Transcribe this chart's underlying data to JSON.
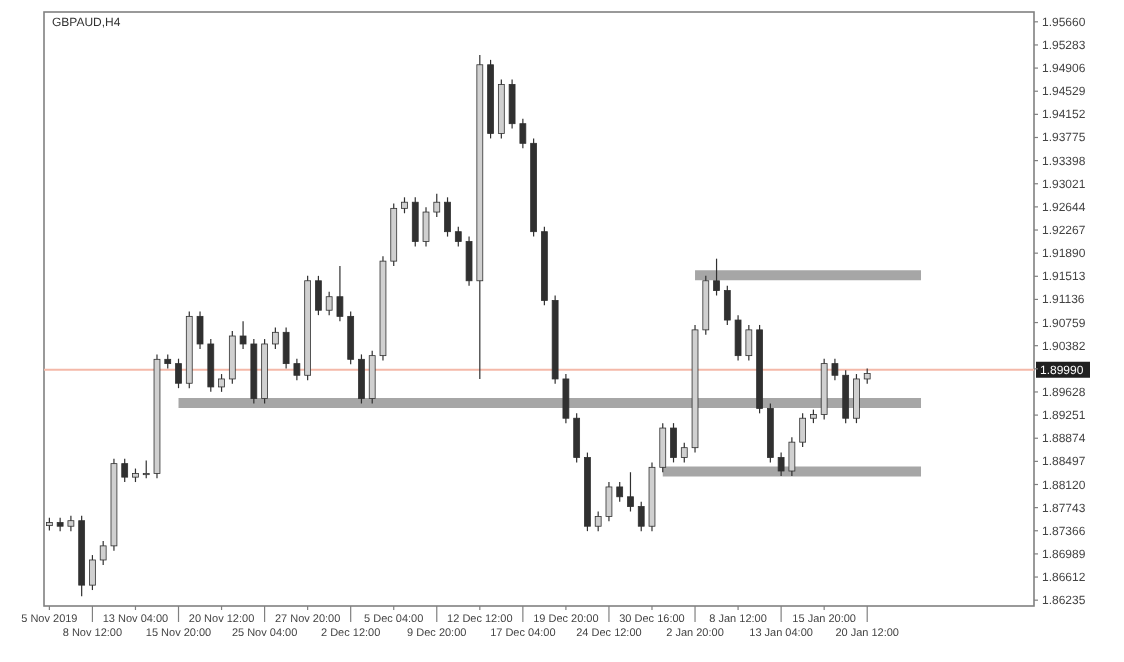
{
  "chart_data": {
    "type": "candlestick",
    "title": "GBPAUD,H4",
    "categories": [
      "5 Nov 2019",
      null,
      null,
      null,
      "8 Nov 12:00",
      null,
      null,
      null,
      "13 Nov 04:00",
      null,
      null,
      null,
      "15 Nov 20:00",
      null,
      null,
      null,
      "20 Nov 12:00",
      null,
      null,
      null,
      "25 Nov 04:00",
      null,
      null,
      null,
      "27 Nov 20:00",
      null,
      null,
      null,
      "2 Dec 12:00",
      null,
      null,
      null,
      "5 Dec 04:00",
      null,
      null,
      null,
      "9 Dec 20:00",
      null,
      null,
      null,
      "12 Dec 12:00",
      null,
      null,
      null,
      "17 Dec 04:00",
      null,
      null,
      null,
      "19 Dec 20:00",
      null,
      null,
      null,
      "24 Dec 12:00",
      null,
      null,
      null,
      "30 Dec 16:00",
      null,
      null,
      null,
      "2 Jan 20:00",
      null,
      null,
      null,
      "8 Jan 12:00",
      null,
      null,
      null,
      "13 Jan 04:00",
      null,
      null,
      null,
      "15 Jan 20:00",
      null,
      null,
      null,
      "20 Jan 12:00",
      null,
      null,
      null,
      null,
      null,
      null,
      null,
      null,
      null,
      null,
      null,
      null,
      null,
      null,
      null
    ],
    "ohlc": [
      [
        1.8745,
        1.8758,
        1.8737,
        1.875
      ],
      [
        1.875,
        1.8758,
        1.8736,
        1.8744
      ],
      [
        1.8744,
        1.8761,
        1.8736,
        1.8753
      ],
      [
        1.8753,
        1.8761,
        1.863,
        1.8648
      ],
      [
        1.8648,
        1.8697,
        1.864,
        1.8689
      ],
      [
        1.8689,
        1.872,
        1.8681,
        1.8712
      ],
      [
        1.8712,
        1.8854,
        1.8704,
        1.8846
      ],
      [
        1.8846,
        1.8854,
        1.8816,
        1.8824
      ],
      [
        1.8824,
        1.8838,
        1.8816,
        1.883
      ],
      [
        1.883,
        1.8851,
        1.8822,
        1.883
      ],
      [
        1.883,
        1.9024,
        1.8822,
        1.9016
      ],
      [
        1.9016,
        1.9024,
        1.9001,
        1.9009
      ],
      [
        1.9009,
        1.9017,
        1.8969,
        1.8977
      ],
      [
        1.8977,
        1.9094,
        1.8969,
        1.9086
      ],
      [
        1.9086,
        1.9094,
        1.9033,
        1.9041
      ],
      [
        1.9041,
        1.9049,
        1.8963,
        1.8971
      ],
      [
        1.8971,
        1.8992,
        1.8963,
        1.8984
      ],
      [
        1.8984,
        1.9062,
        1.8976,
        1.9054
      ],
      [
        1.9054,
        1.9078,
        1.9033,
        1.9041
      ],
      [
        1.9041,
        1.9049,
        1.8944,
        1.8952
      ],
      [
        1.8952,
        1.9049,
        1.8944,
        1.9041
      ],
      [
        1.9041,
        1.9068,
        1.9033,
        1.906
      ],
      [
        1.906,
        1.9068,
        1.9001,
        1.9009
      ],
      [
        1.9009,
        1.9017,
        1.8982,
        1.899
      ],
      [
        1.899,
        1.9152,
        1.8982,
        1.9144
      ],
      [
        1.9144,
        1.9152,
        1.9088,
        1.9096
      ],
      [
        1.9096,
        1.9126,
        1.9088,
        1.9118
      ],
      [
        1.9118,
        1.9168,
        1.9078,
        1.9086
      ],
      [
        1.9086,
        1.9094,
        1.9008,
        1.9016
      ],
      [
        1.9016,
        1.9024,
        1.8944,
        1.8952
      ],
      [
        1.8952,
        1.903,
        1.8944,
        1.9022
      ],
      [
        1.9022,
        1.9184,
        1.9014,
        1.9176
      ],
      [
        1.9176,
        1.927,
        1.9168,
        1.9262
      ],
      [
        1.9262,
        1.928,
        1.9254,
        1.9272
      ],
      [
        1.9272,
        1.928,
        1.92,
        1.9208
      ],
      [
        1.9208,
        1.9264,
        1.92,
        1.9256
      ],
      [
        1.9256,
        1.9286,
        1.9248,
        1.9272
      ],
      [
        1.9272,
        1.928,
        1.9216,
        1.9224
      ],
      [
        1.9224,
        1.9232,
        1.92,
        1.9208
      ],
      [
        1.9208,
        1.9216,
        1.9136,
        1.9144
      ],
      [
        1.9144,
        1.9512,
        1.8984,
        1.9496
      ],
      [
        1.9496,
        1.9504,
        1.9376,
        1.9384
      ],
      [
        1.9384,
        1.9472,
        1.9376,
        1.9464
      ],
      [
        1.9464,
        1.9472,
        1.9392,
        1.94
      ],
      [
        1.94,
        1.9408,
        1.936,
        1.9368
      ],
      [
        1.9368,
        1.9376,
        1.9216,
        1.9224
      ],
      [
        1.9224,
        1.9232,
        1.9104,
        1.9112
      ],
      [
        1.9112,
        1.912,
        1.8976,
        1.8984
      ],
      [
        1.8984,
        1.8992,
        1.8912,
        1.892
      ],
      [
        1.892,
        1.8928,
        1.8848,
        1.8856
      ],
      [
        1.8856,
        1.8864,
        1.8736,
        1.8744
      ],
      [
        1.8744,
        1.8768,
        1.8736,
        1.876
      ],
      [
        1.876,
        1.8816,
        1.8752,
        1.8808
      ],
      [
        1.8808,
        1.8816,
        1.8784,
        1.8792
      ],
      [
        1.8792,
        1.8832,
        1.8768,
        1.8776
      ],
      [
        1.8776,
        1.8784,
        1.8736,
        1.8744
      ],
      [
        1.8744,
        1.8848,
        1.8736,
        1.884
      ],
      [
        1.884,
        1.8912,
        1.8832,
        1.8904
      ],
      [
        1.8904,
        1.8912,
        1.8848,
        1.8856
      ],
      [
        1.8856,
        1.888,
        1.8848,
        1.8872
      ],
      [
        1.8872,
        1.9072,
        1.8864,
        1.9064
      ],
      [
        1.9064,
        1.9152,
        1.9056,
        1.9144
      ],
      [
        1.9144,
        1.918,
        1.912,
        1.9128
      ],
      [
        1.9128,
        1.9136,
        1.9072,
        1.908
      ],
      [
        1.908,
        1.9088,
        1.9014,
        1.9022
      ],
      [
        1.9022,
        1.9072,
        1.9014,
        1.9064
      ],
      [
        1.9064,
        1.9072,
        1.8928,
        1.8936
      ],
      [
        1.8936,
        1.8944,
        1.8848,
        1.8856
      ],
      [
        1.8856,
        1.8864,
        1.8826,
        1.8834
      ],
      [
        1.8834,
        1.8889,
        1.8826,
        1.8881
      ],
      [
        1.8881,
        1.8928,
        1.8873,
        1.892
      ],
      [
        1.892,
        1.8934,
        1.8912,
        1.8926
      ],
      [
        1.8926,
        1.9017,
        1.8918,
        1.9009
      ],
      [
        1.9009,
        1.9017,
        1.8982,
        1.899
      ],
      [
        1.899,
        1.8998,
        1.8912,
        1.892
      ],
      [
        1.892,
        1.8992,
        1.8912,
        1.8984
      ],
      [
        1.8984,
        1.9001,
        1.8976,
        1.8993
      ],
      null,
      null,
      null,
      null,
      null,
      null,
      null,
      null,
      null,
      null,
      null,
      null,
      null,
      null,
      null
    ],
    "series": [
      {
        "type": "line",
        "color": "#a6a6a6",
        "values": [
          null,
          null,
          null,
          null,
          null,
          null,
          null,
          null,
          null,
          null,
          null,
          null,
          1.8945,
          1.8945,
          1.8945,
          1.8945,
          1.8945,
          1.8945,
          1.8945,
          1.8945,
          1.8945,
          1.8945,
          1.8945,
          1.8945,
          1.8945,
          1.8945,
          1.8945,
          1.8945,
          1.8945,
          1.8945,
          1.8945,
          1.8945,
          1.8945,
          1.8945,
          1.8945,
          1.8945,
          1.8945,
          1.8945,
          1.8945,
          1.8945,
          1.8945,
          1.8945,
          1.8945,
          1.8945,
          1.8945,
          1.8945,
          1.8945,
          1.8945,
          1.8945,
          1.8945,
          1.8945,
          1.8945,
          1.8945,
          1.8945,
          1.8945,
          1.8945,
          1.8945,
          1.8945,
          1.8945,
          1.8945,
          1.8945,
          1.8945,
          1.8945,
          1.8945,
          1.8945,
          1.8945,
          1.8945,
          1.8945,
          1.8945,
          1.8945,
          1.8945,
          1.8945,
          1.8945,
          1.8945,
          1.8945,
          1.8945,
          1.8945,
          1.8945,
          1.8945,
          1.8945,
          1.8945,
          1.8945,
          null,
          null,
          null,
          null,
          null,
          null,
          null,
          null,
          null,
          null
        ]
      },
      {
        "type": "line",
        "color": "#a6a6a6",
        "values": [
          null,
          null,
          null,
          null,
          null,
          null,
          null,
          null,
          null,
          null,
          null,
          null,
          null,
          null,
          null,
          null,
          null,
          null,
          null,
          null,
          null,
          null,
          null,
          null,
          null,
          null,
          null,
          null,
          null,
          null,
          null,
          null,
          null,
          null,
          null,
          null,
          null,
          null,
          null,
          null,
          null,
          null,
          null,
          null,
          null,
          null,
          null,
          null,
          null,
          null,
          null,
          null,
          null,
          null,
          null,
          null,
          null,
          null,
          null,
          null,
          1.9153,
          1.9153,
          1.9153,
          1.9153,
          1.9153,
          1.9153,
          1.9153,
          1.9153,
          1.9153,
          1.9153,
          1.9153,
          1.9153,
          1.9153,
          1.9153,
          1.9153,
          1.9153,
          1.9153,
          1.9153,
          1.9153,
          1.9153,
          1.9153,
          1.9153,
          null,
          null,
          null,
          null,
          null,
          null,
          null,
          null,
          null,
          null
        ]
      },
      {
        "type": "line",
        "color": "#a6a6a6",
        "values": [
          null,
          null,
          null,
          null,
          null,
          null,
          null,
          null,
          null,
          null,
          null,
          null,
          null,
          null,
          null,
          null,
          null,
          null,
          null,
          null,
          null,
          null,
          null,
          null,
          null,
          null,
          null,
          null,
          null,
          null,
          null,
          null,
          null,
          null,
          null,
          null,
          null,
          null,
          null,
          null,
          null,
          null,
          null,
          null,
          null,
          null,
          null,
          null,
          null,
          null,
          null,
          null,
          null,
          null,
          null,
          null,
          null,
          1.8833,
          1.8833,
          1.8833,
          1.8833,
          1.8833,
          1.8833,
          1.8833,
          1.8833,
          1.8833,
          1.8833,
          1.8833,
          1.8833,
          1.8833,
          1.8833,
          1.8833,
          1.8833,
          1.8833,
          1.8833,
          1.8833,
          1.8833,
          1.8833,
          1.8833,
          1.8833,
          1.8833,
          1.8833,
          null,
          null,
          null,
          null,
          null,
          null,
          null,
          null,
          null,
          null
        ]
      }
    ],
    "ref_lines": [
      {
        "axis": "y",
        "value": 1.8999,
        "label": "1.89990",
        "color": "#f4b8a8"
      }
    ],
    "ylim": [
      1.8614,
      1.9582
    ],
    "yticks": [
      {
        "value": 1.9566,
        "label": "1.95660"
      },
      {
        "value": 1.95283,
        "label": "1.95283"
      },
      {
        "value": 1.94906,
        "label": "1.94906"
      },
      {
        "value": 1.94529,
        "label": "1.94529"
      },
      {
        "value": 1.94152,
        "label": "1.94152"
      },
      {
        "value": 1.93775,
        "label": "1.93775"
      },
      {
        "value": 1.93398,
        "label": "1.93398"
      },
      {
        "value": 1.93021,
        "label": "1.93021"
      },
      {
        "value": 1.92644,
        "label": "1.92644"
      },
      {
        "value": 1.92267,
        "label": "1.92267"
      },
      {
        "value": 1.9189,
        "label": "1.91890"
      },
      {
        "value": 1.91513,
        "label": "1.91513"
      },
      {
        "value": 1.91136,
        "label": "1.91136"
      },
      {
        "value": 1.90759,
        "label": "1.90759"
      },
      {
        "value": 1.90382,
        "label": "1.90382"
      },
      {
        "value": 1.90005,
        "label": null
      },
      {
        "value": 1.89628,
        "label": "1.89628"
      },
      {
        "value": 1.89251,
        "label": "1.89251"
      },
      {
        "value": 1.88874,
        "label": "1.88874"
      },
      {
        "value": 1.88497,
        "label": "1.88497"
      },
      {
        "value": 1.8812,
        "label": "1.88120"
      },
      {
        "value": 1.87743,
        "label": "1.87743"
      },
      {
        "value": 1.87366,
        "label": "1.87366"
      },
      {
        "value": 1.86989,
        "label": "1.86989"
      },
      {
        "value": 1.86612,
        "label": "1.86612"
      },
      {
        "value": 1.86235,
        "label": "1.86235"
      }
    ]
  }
}
